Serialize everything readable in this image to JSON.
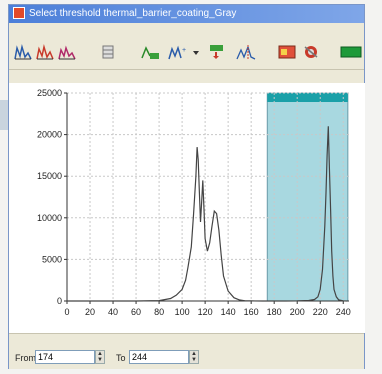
{
  "window": {
    "title": "Select threshold   thermal_barrier_coating_Gray"
  },
  "toolbar": {
    "icons": [
      "histogram-icon",
      "histogram-red-icon",
      "histogram-blue-icon",
      "table-icon",
      "log-scale-icon",
      "fit-curve-icon",
      "log-arrow-icon",
      "peak-icon",
      "image-icon",
      "settings-icon",
      "threshold-color-icon"
    ]
  },
  "colors": {
    "selection": "#a8d8e0",
    "selection_bar": "#1aa0a8",
    "curve": "#444444",
    "threshold_swatch": "#1e9a3a"
  },
  "range": {
    "from_label": "From",
    "from_value": "174",
    "to_label": "To",
    "to_value": "244"
  },
  "chart_data": {
    "type": "line",
    "xlim": [
      0,
      245
    ],
    "ylim": [
      0,
      25000
    ],
    "x_ticks": [
      0,
      20,
      40,
      60,
      80,
      100,
      120,
      140,
      160,
      180,
      200,
      220,
      240
    ],
    "y_ticks": [
      0,
      5000,
      10000,
      15000,
      20000,
      25000
    ],
    "grid": true,
    "highlight_range": [
      174,
      244
    ],
    "x": [
      0,
      60,
      80,
      90,
      95,
      100,
      103,
      105,
      108,
      110,
      112,
      113,
      114,
      115,
      116,
      117,
      118,
      119,
      120,
      122,
      124,
      126,
      128,
      130,
      132,
      134,
      136,
      140,
      145,
      150,
      155,
      160,
      170,
      180,
      190,
      200,
      210,
      215,
      218,
      220,
      222,
      223,
      224,
      225,
      226,
      227,
      228,
      229,
      230,
      231,
      232,
      234,
      236,
      240,
      243
    ],
    "values": [
      0,
      0,
      50,
      300,
      700,
      1400,
      2500,
      4000,
      6500,
      10500,
      15000,
      18500,
      17000,
      13000,
      9500,
      12000,
      14500,
      11000,
      7500,
      6000,
      7000,
      9000,
      10800,
      10500,
      8500,
      5500,
      3000,
      1200,
      400,
      120,
      30,
      10,
      5,
      5,
      5,
      10,
      60,
      180,
      500,
      1400,
      3800,
      6500,
      9000,
      13000,
      17500,
      21000,
      16000,
      11000,
      6000,
      3000,
      1400,
      500,
      150,
      30,
      0
    ]
  }
}
